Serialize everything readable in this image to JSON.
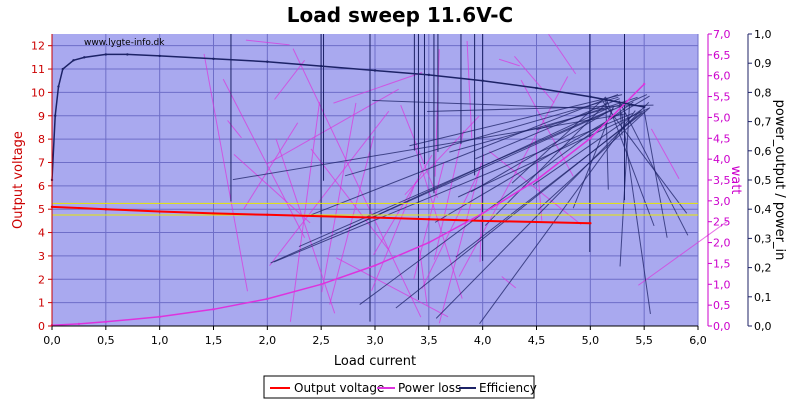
{
  "chart_data": {
    "type": "line",
    "title": "Load sweep 11.6V-C",
    "watermark": "www.lygte-info.dk",
    "xlabel": "Load current",
    "ylabel_left": "Output voltage",
    "ylabel_right1": "watt",
    "ylabel_right2": "power_output / power_in",
    "xlim": [
      0,
      6
    ],
    "ylim_left": [
      0,
      12.5
    ],
    "ylim_right1": [
      0,
      7
    ],
    "ylim_right2": [
      0,
      1
    ],
    "x_ticks": [
      "0,0",
      "0,5",
      "1,0",
      "1,5",
      "2,0",
      "2,5",
      "3,0",
      "3,5",
      "4,0",
      "4,5",
      "5,0",
      "5,5",
      "6,0"
    ],
    "y_left_ticks": [
      "0",
      "1",
      "2",
      "3",
      "4",
      "5",
      "6",
      "7",
      "8",
      "9",
      "10",
      "11",
      "12"
    ],
    "y_right1_ticks": [
      "0,0",
      "0,5",
      "1,0",
      "1,5",
      "2,0",
      "2,5",
      "3,0",
      "3,5",
      "4,0",
      "4,5",
      "5,0",
      "5,5",
      "6,0",
      "6,5",
      "7,0"
    ],
    "y_right2_ticks": [
      "0,0",
      "0,1",
      "0,2",
      "0,3",
      "0,4",
      "0,5",
      "0,6",
      "0,7",
      "0,8",
      "0,9",
      "1,0"
    ],
    "reference_lines_left": [
      5.25,
      4.75
    ],
    "grid": true,
    "legend_position": "bottom-center",
    "colors": {
      "plot_bg": "#a9a9ef",
      "grid": "#6e6ec8",
      "output_voltage": "#ff0000",
      "power_loss": "#dd33dd",
      "efficiency": "#1c2266",
      "reference": "#e6e600",
      "left_axis": "#cc0000",
      "right1_axis": "#cc00cc",
      "right2_axis": "#1c2266"
    },
    "series": [
      {
        "name": "Output voltage",
        "axis": "left",
        "x": [
          0.0,
          0.25,
          0.5,
          1.0,
          1.5,
          2.0,
          2.5,
          3.0,
          3.5,
          4.0,
          4.5,
          5.0
        ],
        "values": [
          5.1,
          5.05,
          5.0,
          4.9,
          4.82,
          4.76,
          4.7,
          4.64,
          4.57,
          4.5,
          4.45,
          4.4
        ]
      },
      {
        "name": "Power loss",
        "axis": "right1",
        "x": [
          0.0,
          0.25,
          0.5,
          1.0,
          1.5,
          2.0,
          2.5,
          3.0,
          3.5,
          4.0,
          4.5,
          5.0,
          5.5
        ],
        "values": [
          0.02,
          0.05,
          0.1,
          0.22,
          0.4,
          0.65,
          1.0,
          1.45,
          2.0,
          2.7,
          3.5,
          4.5,
          5.8
        ]
      },
      {
        "name": "Efficiency",
        "axis": "right2",
        "x": [
          0.0,
          0.03,
          0.06,
          0.1,
          0.2,
          0.3,
          0.5,
          0.7,
          1.0,
          1.5,
          2.0,
          2.5,
          3.0,
          3.5,
          4.0,
          4.5,
          5.0,
          5.5
        ],
        "values": [
          0.5,
          0.72,
          0.82,
          0.88,
          0.91,
          0.92,
          0.93,
          0.93,
          0.925,
          0.915,
          0.905,
          0.89,
          0.875,
          0.86,
          0.84,
          0.815,
          0.785,
          0.75
        ]
      }
    ]
  }
}
